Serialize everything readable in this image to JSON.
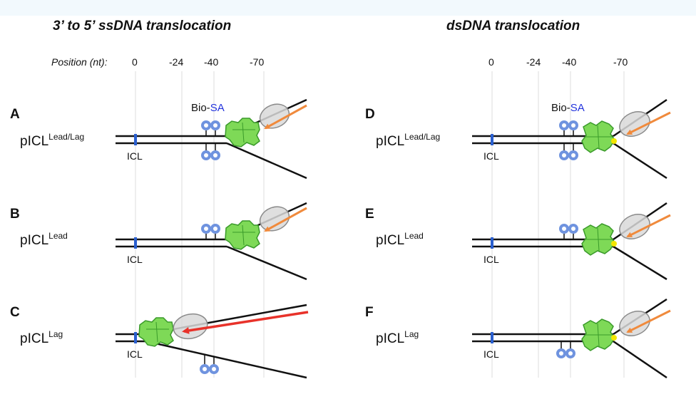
{
  "left_column": {
    "title": "3’ to 5’ ssDNA translocation",
    "position_label": "Position (nt):",
    "ticks": [
      "0",
      "-24",
      "-40",
      "-70"
    ],
    "bio_label": "Bio-",
    "sa_label": "SA",
    "panels": [
      {
        "letter": "A",
        "substrate": "pICL",
        "superscript": "Lead/Lag",
        "icl_label": "ICL"
      },
      {
        "letter": "B",
        "substrate": "pICL",
        "superscript": "Lead",
        "icl_label": "ICL"
      },
      {
        "letter": "C",
        "substrate": "pICL",
        "superscript": "Lag",
        "icl_label": "ICL"
      }
    ]
  },
  "right_column": {
    "title": "dsDNA translocation",
    "ticks": [
      "0",
      "-24",
      "-40",
      "-70"
    ],
    "bio_label": "Bio-",
    "sa_label": "SA",
    "panels": [
      {
        "letter": "D",
        "substrate": "pICL",
        "superscript": "Lead/Lag",
        "icl_label": "ICL"
      },
      {
        "letter": "E",
        "substrate": "pICL",
        "superscript": "Lead",
        "icl_label": "ICL"
      },
      {
        "letter": "F",
        "substrate": "pICL",
        "superscript": "Lag",
        "icl_label": "ICL"
      }
    ]
  },
  "colors": {
    "header_band": "#f2f9fd",
    "dna": "#111111",
    "icl_mark": "#2a5fcf",
    "streptavidin": "#6f93df",
    "helicase_fill": "#7ed957",
    "helicase_stroke": "#3a9a2a",
    "ring_fill": "#d9d9d9",
    "ring_stroke": "#8a8a8a",
    "arrow_orange": "#f08a3c",
    "arrow_red": "#e8322a",
    "junction_yellow": "#f2e600",
    "gridline": "#dedede"
  }
}
